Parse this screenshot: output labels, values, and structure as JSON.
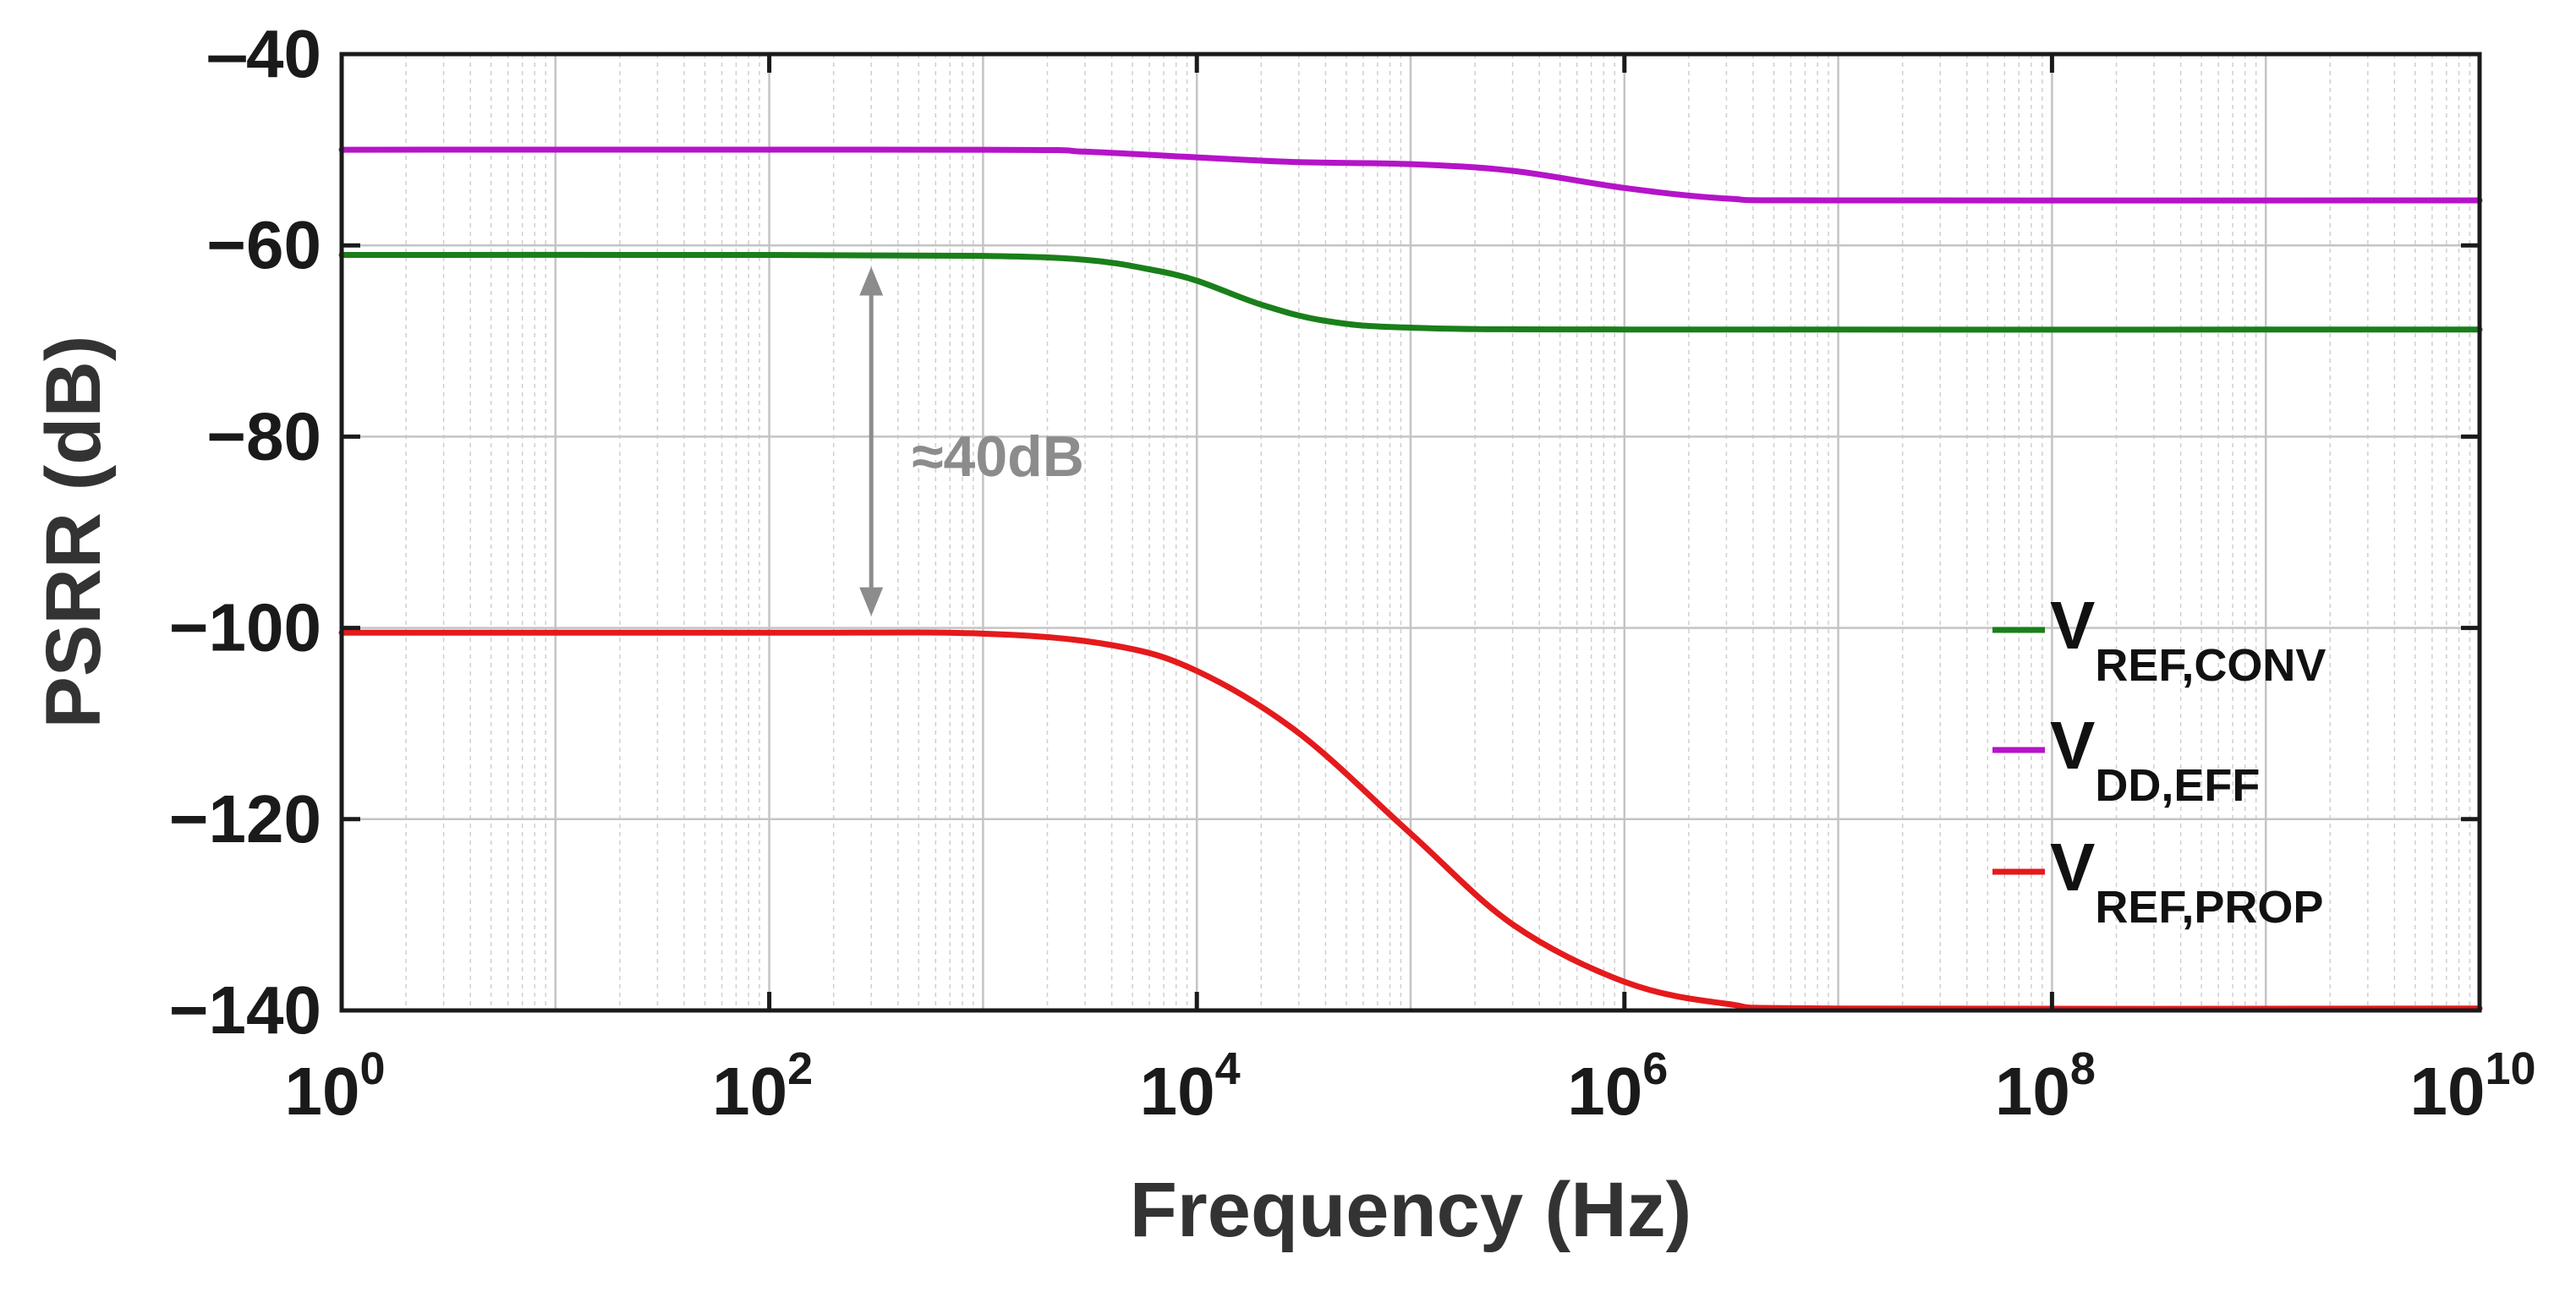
{
  "chart_data": {
    "type": "line",
    "title": "",
    "xlabel": "Frequency (Hz)",
    "ylabel": "PSRR (dB)",
    "xscale": "log",
    "xlim": [
      1,
      10000000000
    ],
    "ylim": [
      -140,
      -40
    ],
    "grid": true,
    "x_ticks": [
      {
        "value": 1,
        "base": "10",
        "exp": "0"
      },
      {
        "value": 100,
        "base": "10",
        "exp": "2"
      },
      {
        "value": 10000,
        "base": "10",
        "exp": "4"
      },
      {
        "value": 1000000,
        "base": "10",
        "exp": "6"
      },
      {
        "value": 100000000,
        "base": "10",
        "exp": "8"
      },
      {
        "value": 10000000000,
        "base": "10",
        "exp": "10"
      }
    ],
    "y_ticks": [
      {
        "value": -40,
        "label": "‒40"
      },
      {
        "value": -60,
        "label": "−60"
      },
      {
        "value": -80,
        "label": "−80"
      },
      {
        "value": -100,
        "label": "−100"
      },
      {
        "value": -120,
        "label": "−120"
      },
      {
        "value": -140,
        "label": "−140"
      }
    ],
    "legend_position": "bottom-right",
    "series": [
      {
        "name": "V",
        "sub": "REF,CONV",
        "color": "#1a7f1a",
        "points": [
          [
            1,
            -61.0
          ],
          [
            100,
            -61.0
          ],
          [
            1000,
            -61.1
          ],
          [
            3000,
            -61.5
          ],
          [
            6000,
            -62.5
          ],
          [
            10000,
            -63.7
          ],
          [
            20000,
            -66.2
          ],
          [
            40000,
            -67.9
          ],
          [
            100000,
            -68.6
          ],
          [
            1000000,
            -68.8
          ],
          [
            10000000000,
            -68.8
          ]
        ]
      },
      {
        "name": "V",
        "sub": "DD,EFF",
        "color": "#b514c8",
        "points": [
          [
            1,
            -50.0
          ],
          [
            1000,
            -50.0
          ],
          [
            3000,
            -50.2
          ],
          [
            10000,
            -50.8
          ],
          [
            30000,
            -51.3
          ],
          [
            100000,
            -51.5
          ],
          [
            300000,
            -52.2
          ],
          [
            1000000,
            -54.0
          ],
          [
            3000000,
            -55.1
          ],
          [
            10000000,
            -55.3
          ],
          [
            10000000000,
            -55.3
          ]
        ]
      },
      {
        "name": "V",
        "sub": "REF,PROP",
        "color": "#e41a1c",
        "points": [
          [
            1,
            -100.5
          ],
          [
            100,
            -100.5
          ],
          [
            1000,
            -100.6
          ],
          [
            4000,
            -101.8
          ],
          [
            10000,
            -104.5
          ],
          [
            30000,
            -111.0
          ],
          [
            100000,
            -121.5
          ],
          [
            300000,
            -131.0
          ],
          [
            1000000,
            -137.0
          ],
          [
            3000000,
            -139.3
          ],
          [
            10000000,
            -139.8
          ],
          [
            10000000000,
            -139.8
          ]
        ]
      }
    ],
    "annotations": [
      {
        "text": "≈40dB",
        "arrow_x": 300,
        "arrow_y_from": -61,
        "arrow_y_to": -100,
        "color": "#8c8c8c"
      }
    ]
  }
}
